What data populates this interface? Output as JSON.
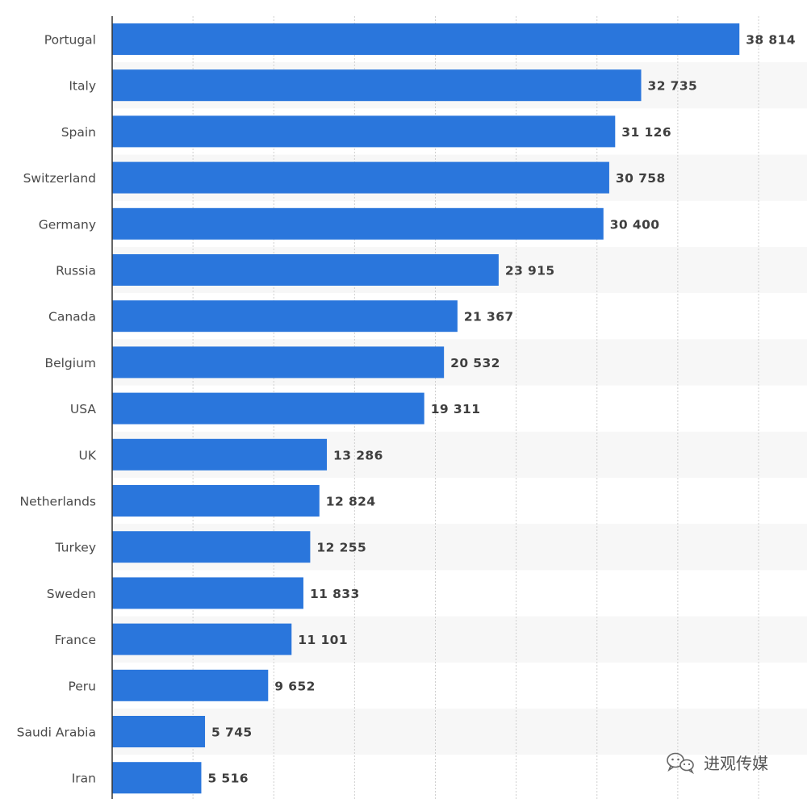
{
  "chart_data": {
    "type": "bar",
    "orientation": "horizontal",
    "title": "",
    "xlabel": "",
    "ylabel": "",
    "xlim": [
      0,
      40000
    ],
    "grid": true,
    "bar_color": "#2a76dc",
    "band_color": "#f7f7f7",
    "categories": [
      "Portugal",
      "Italy",
      "Spain",
      "Switzerland",
      "Germany",
      "Russia",
      "Canada",
      "Belgium",
      "USA",
      "UK",
      "Netherlands",
      "Turkey",
      "Sweden",
      "France",
      "Peru",
      "Saudi Arabia",
      "Iran"
    ],
    "values": [
      38814,
      32735,
      31126,
      30758,
      30400,
      23915,
      21367,
      20532,
      19311,
      13286,
      12824,
      12255,
      11833,
      11101,
      9652,
      5745,
      5516
    ],
    "value_labels": [
      "38 814",
      "32 735",
      "31 126",
      "30 758",
      "30 400",
      "23 915",
      "21 367",
      "20 532",
      "19 311",
      "13 286",
      "12 824",
      "12 255",
      "11 833",
      "11 101",
      "9 652",
      "5 745",
      "5 516"
    ]
  },
  "watermark": {
    "icon": "wechat-icon",
    "text": "进观传媒"
  }
}
